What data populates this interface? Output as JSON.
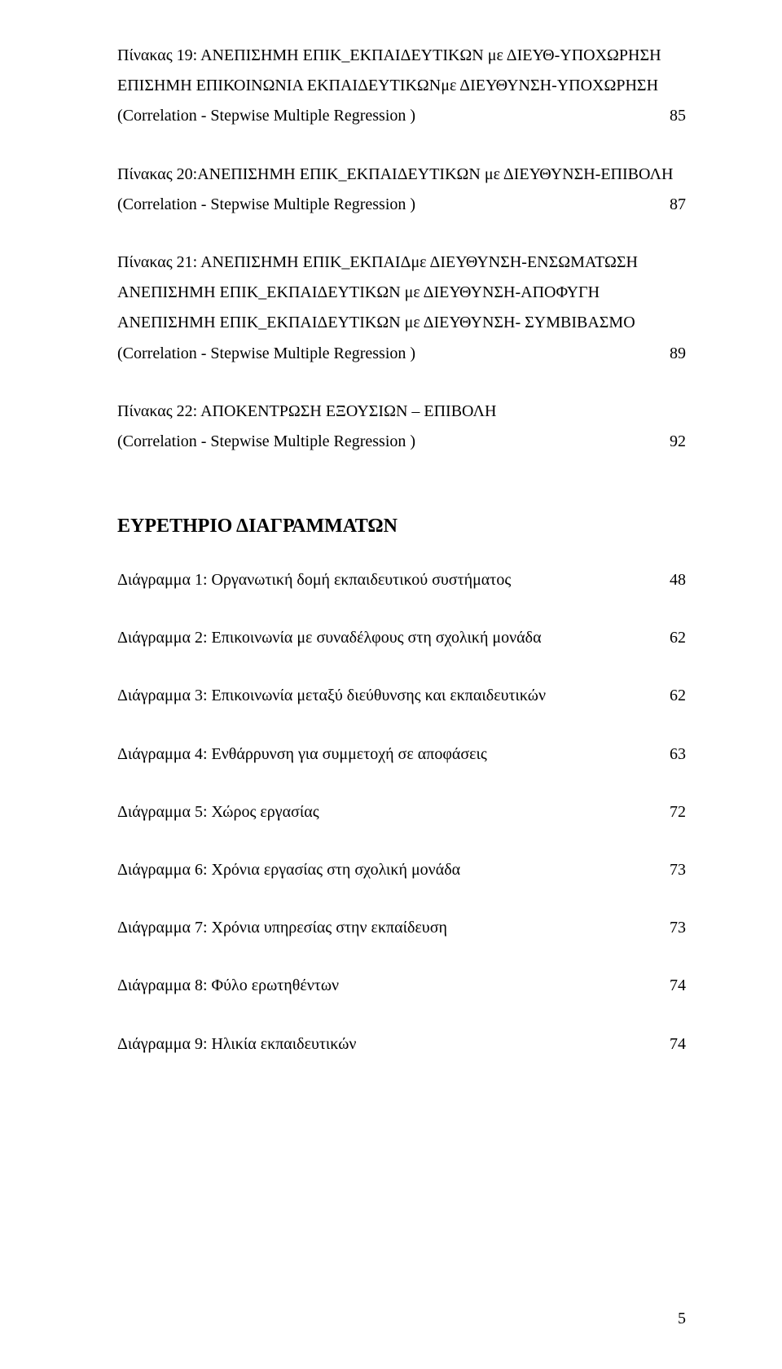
{
  "entries": [
    {
      "lines": [
        "Πίνακας 19: ΑΝΕΠΙΣΗΜΗ ΕΠΙΚ_ΕΚΠΑΙΔΕΥΤΙΚΩΝ με ΔΙΕΥΘ-ΥΠΟΧΩΡΗΣΗ",
        "ΕΠΙΣΗΜΗ ΕΠΙΚΟΙΝΩΝΙΑ ΕΚΠΑΙΔΕΥΤΙΚΩΝμε ΔΙΕΥΘΥΝΣΗ-ΥΠΟΧΩΡΗΣΗ",
        "(Correlation  - Stepwise Multiple  Regression )"
      ],
      "page": "85"
    },
    {
      "lines": [
        "Πίνακας 20:ΑΝΕΠΙΣΗΜΗ ΕΠΙΚ_ΕΚΠΑΙΔΕΥΤΙΚΩΝ με ΔΙΕΥΘΥΝΣΗ-ΕΠΙΒΟΛΗ",
        "(Correlation  - Stepwise Multiple  Regression )"
      ],
      "page": "87"
    },
    {
      "lines": [
        "Πίνακας 21: ΑΝΕΠΙΣΗΜΗ ΕΠΙΚ_ΕΚΠΑΙΔμε ΔΙΕΥΘΥΝΣΗ-ΕΝΣΩΜΑΤΩΣΗ",
        "ΑΝΕΠΙΣΗΜΗ ΕΠΙΚ_ΕΚΠΑΙΔΕΥΤΙΚΩΝ με ΔΙΕΥΘΥΝΣΗ-ΑΠΟΦΥΓΗ",
        "ΑΝΕΠΙΣΗΜΗ ΕΠΙΚ_ΕΚΠΑΙΔΕΥΤΙΚΩΝ με ΔΙΕΥΘΥΝΣΗ- ΣΥΜΒΙΒΑΣΜΟ",
        "(Correlation  - Stepwise Multiple  Regression )"
      ],
      "page": "89"
    },
    {
      "lines": [
        "Πίνακας 22: ΑΠΟΚΕΝΤΡΩΣΗ ΕΞΟΥΣΙΩΝ – ΕΠΙΒΟΛΗ",
        "(Correlation  - Stepwise Multiple  Regression )"
      ],
      "page": "92"
    }
  ],
  "section_title": "ΕΥΡΕΤΗΡΙΟ ΔΙΑΓΡΑΜΜΑΤΩΝ",
  "diagrams": [
    {
      "text": "Διάγραμμα 1: Οργανωτική δομή εκπαιδευτικού συστήματος",
      "page": "48"
    },
    {
      "text": "Διάγραμμα 2: Επικοινωνία με συναδέλφους στη σχολική μονάδα",
      "page": "62"
    },
    {
      "text": "Διάγραμμα 3: Επικοινωνία μεταξύ διεύθυνσης και εκπαιδευτικών",
      "page": "62"
    },
    {
      "text": "Διάγραμμα 4: Ενθάρρυνση για συμμετοχή σε αποφάσεις",
      "page": "63"
    },
    {
      "text": "Διάγραμμα 5: Χώρος εργασίας",
      "page": "72"
    },
    {
      "text": "Διάγραμμα 6: Χρόνια εργασίας στη σχολική μονάδα",
      "page": "73"
    },
    {
      "text": "Διάγραμμα 7: Χρόνια υπηρεσίας στην εκπαίδευση",
      "page": "73"
    },
    {
      "text": "Διάγραμμα 8: Φύλο ερωτηθέντων",
      "page": "74"
    },
    {
      "text": "Διάγραμμα 9: Ηλικία εκπαιδευτικών",
      "page": "74"
    }
  ],
  "page_number": "5"
}
